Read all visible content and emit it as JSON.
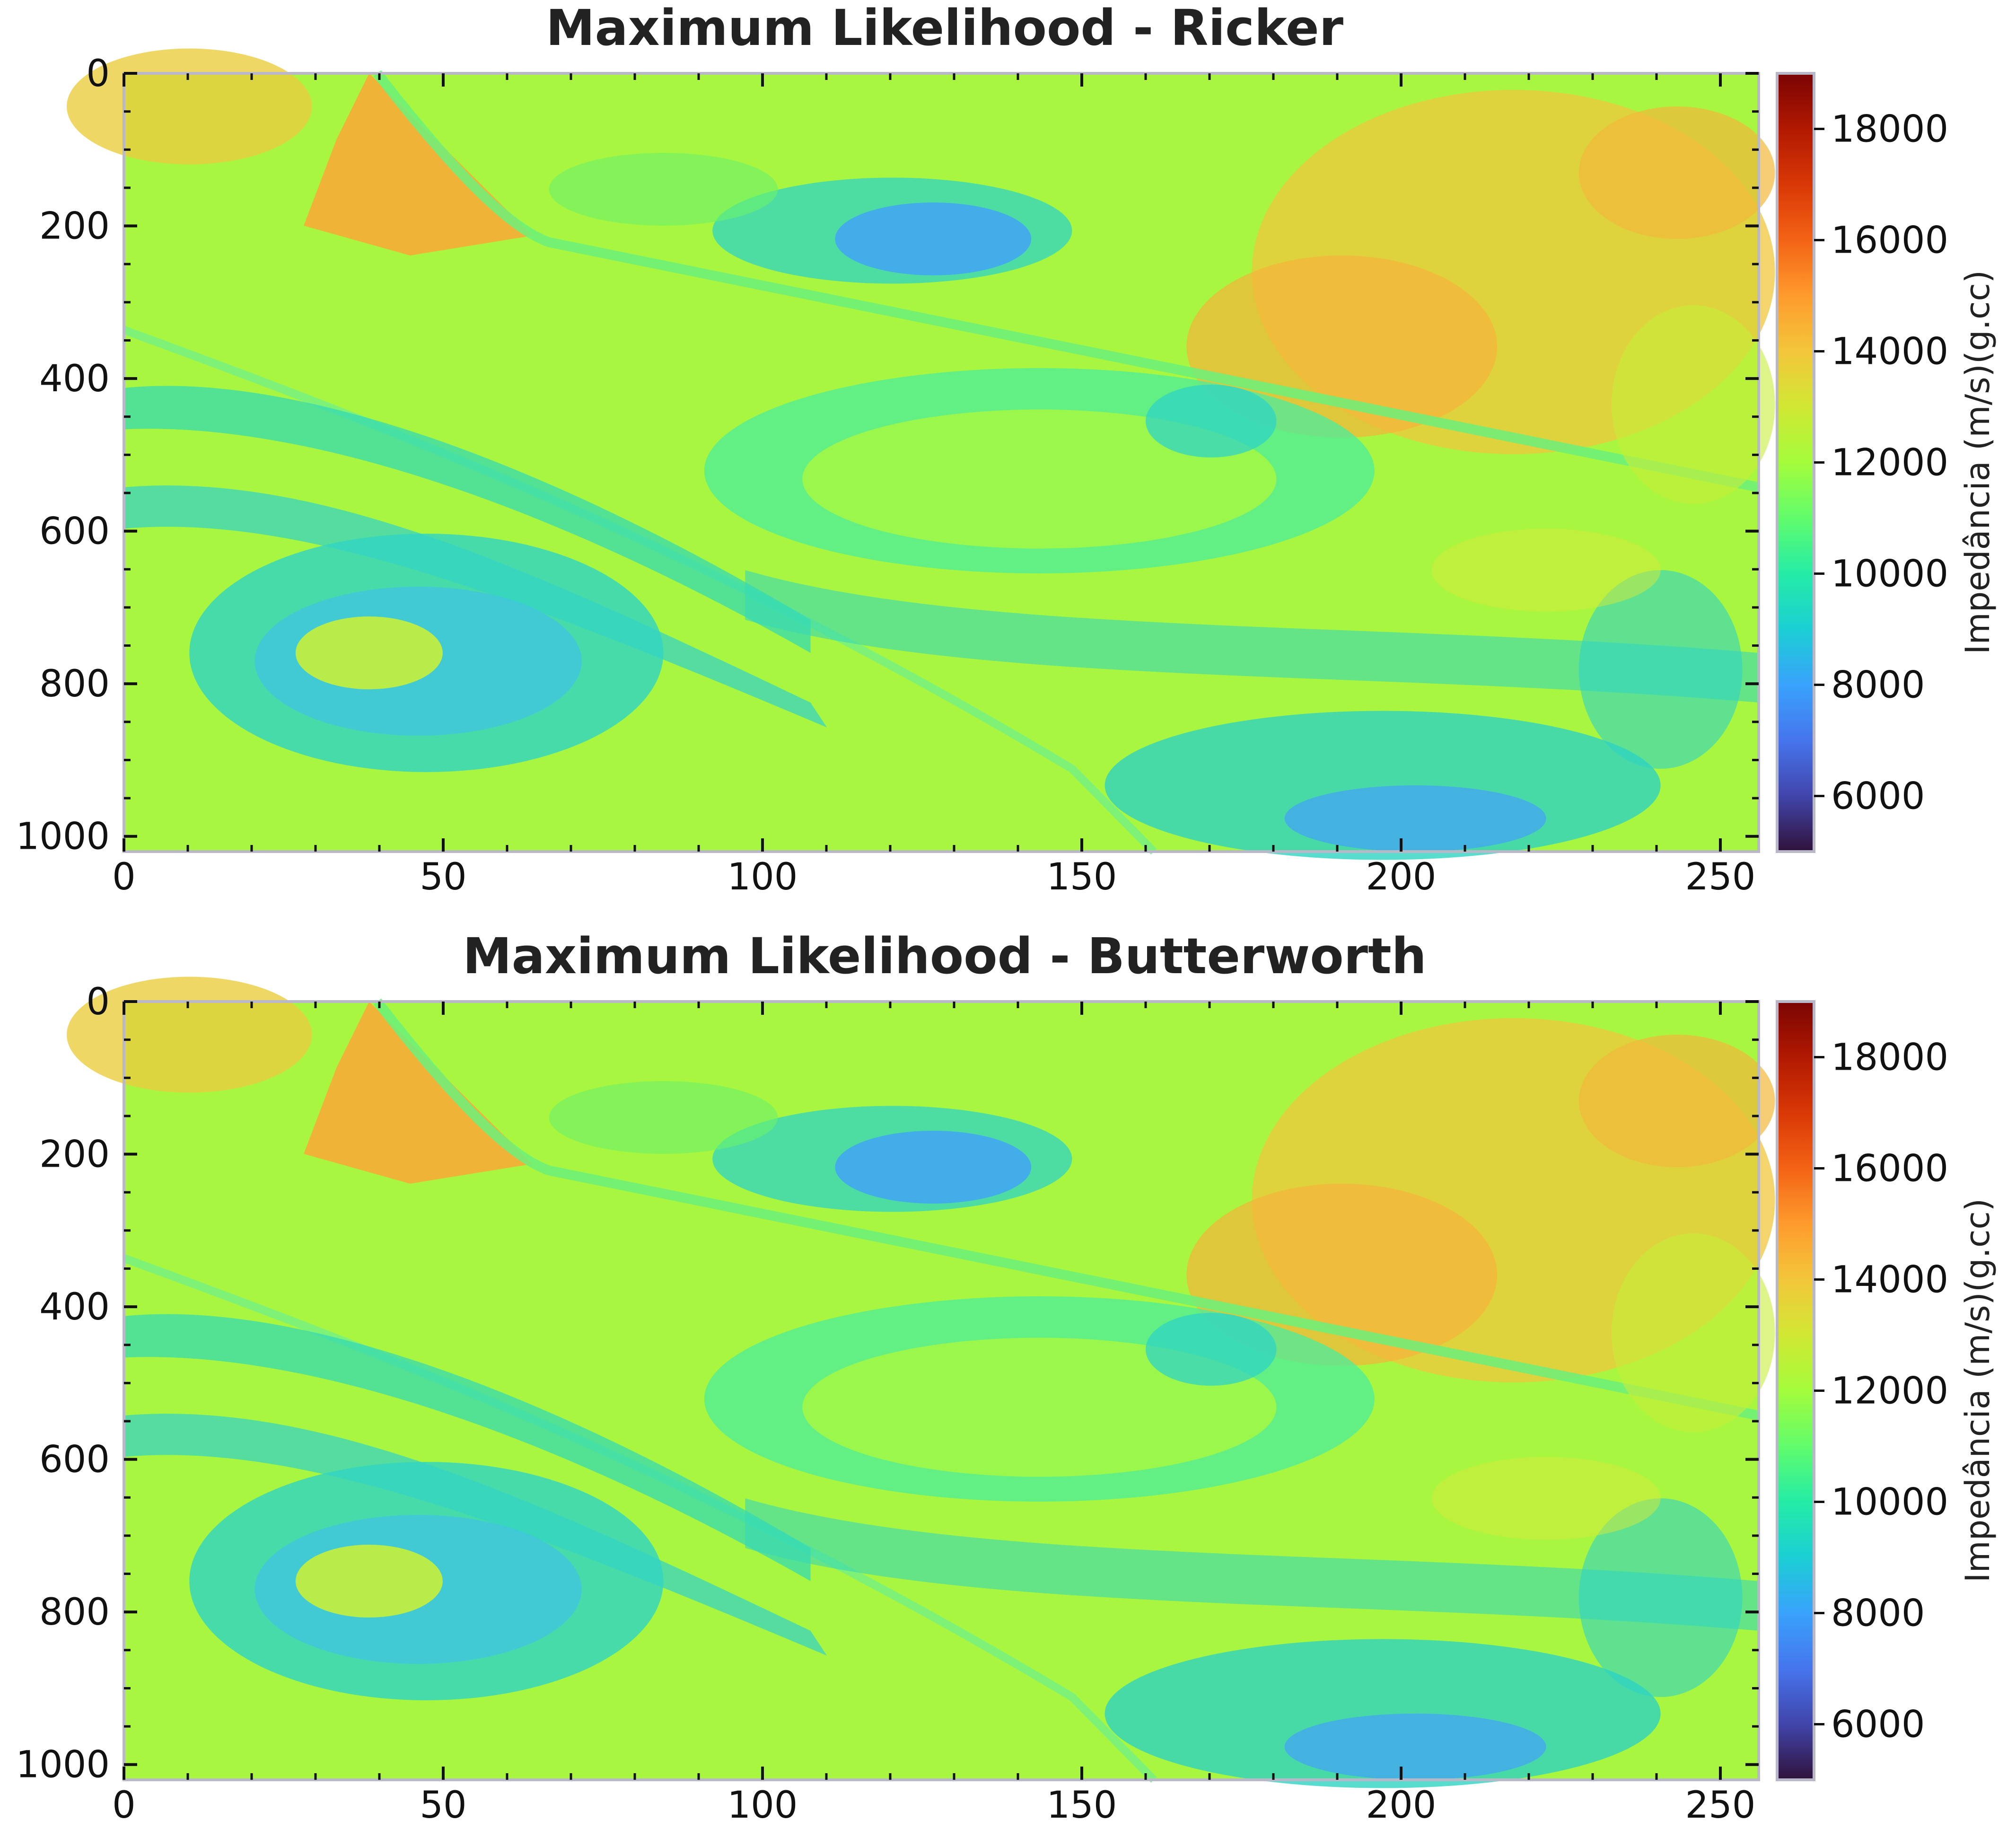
{
  "chart_data": [
    {
      "type": "heatmap",
      "title": "Maximum Likelihood - Ricker",
      "xlabel": "",
      "ylabel": "",
      "xlim": [
        0,
        256
      ],
      "ylim": [
        1020,
        0
      ],
      "xticks": [
        0,
        50,
        100,
        150,
        200,
        250
      ],
      "yticks": [
        0,
        200,
        400,
        600,
        800,
        1000
      ],
      "colorbar": {
        "label": "Impedância (m/s)(g.cc)",
        "range": [
          5000,
          19000
        ],
        "ticks": [
          6000,
          8000,
          10000,
          12000,
          14000,
          16000,
          18000
        ],
        "colormap": "turbo"
      }
    },
    {
      "type": "heatmap",
      "title": "Maximum Likelihood - Butterworth",
      "xlabel": "",
      "ylabel": "",
      "xlim": [
        0,
        256
      ],
      "ylim": [
        1020,
        0
      ],
      "xticks": [
        0,
        50,
        100,
        150,
        200,
        250
      ],
      "yticks": [
        0,
        200,
        400,
        600,
        800,
        1000
      ],
      "colorbar": {
        "label": "Impedância (m/s)(g.cc)",
        "range": [
          5000,
          19000
        ],
        "ticks": [
          6000,
          8000,
          10000,
          12000,
          14000,
          16000,
          18000
        ],
        "colormap": "turbo"
      }
    }
  ],
  "colors": {
    "frame": "#b8b8c8",
    "text": "#1a1a1a",
    "turbo_stops": [
      "#30123b",
      "#4145ab",
      "#4675ed",
      "#39a2fc",
      "#1bcfd4",
      "#24eca6",
      "#61fc6c",
      "#a4fc3b",
      "#d1e834",
      "#f3c63a",
      "#fe9b2d",
      "#f36315",
      "#d93806",
      "#b11901",
      "#7a0403"
    ]
  }
}
